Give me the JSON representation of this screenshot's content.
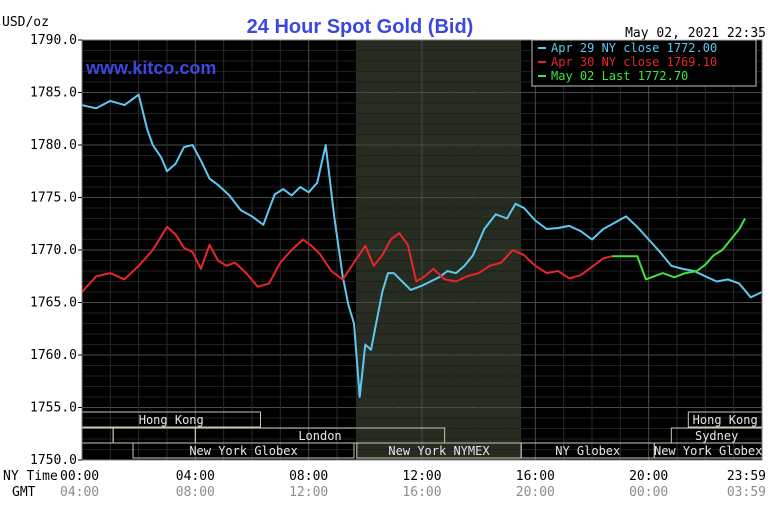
{
  "chart_data": {
    "type": "line",
    "title": "24 Hour Spot Gold (Bid)",
    "watermark": "www.kitco.com",
    "timestamp": "May 02, 2021 22:35",
    "ylabel": "USD/oz",
    "ylim": [
      1750,
      1790
    ],
    "xlim": [
      0,
      24
    ],
    "grid": true,
    "background": "#000000",
    "y_ticks": [
      "1790.0",
      "1785.0",
      "1780.0",
      "1775.0",
      "1770.0",
      "1765.0",
      "1760.0",
      "1755.0",
      "1750.0"
    ],
    "x_row_label_ny": "NY Time",
    "x_row_label_gmt": "GMT",
    "x_ticks_ny": [
      "00:00",
      "04:00",
      "08:00",
      "12:00",
      "16:00",
      "20:00",
      "23:59"
    ],
    "x_ticks_gmt": [
      "04:00",
      "08:00",
      "12:00",
      "16:00",
      "20:00",
      "00:00",
      "03:59"
    ],
    "x_tick_hours": [
      0,
      4,
      8,
      12,
      16,
      20,
      24
    ],
    "nymex_highlight": [
      9.67,
      15.5
    ],
    "legend": [
      {
        "label": "Apr 29 NY close 1772.00",
        "color": "#5ec8f0"
      },
      {
        "label": "Apr 30 NY close 1769.10",
        "color": "#e8262a"
      },
      {
        "label": "May 02 Last 1772.70",
        "color": "#3ce63c"
      }
    ],
    "sessions": [
      {
        "label": "Hong Kong",
        "row": 0,
        "start": 0,
        "end": 6.3
      },
      {
        "label": "",
        "row": 1,
        "start": 0,
        "end": 1.1
      },
      {
        "label": "",
        "row": 1,
        "start": 1.1,
        "end": 4.0
      },
      {
        "label": "London",
        "row": 1,
        "start": 4.0,
        "end": 12.8
      },
      {
        "label": "New York Globex",
        "row": 2,
        "start": 1.8,
        "end": 9.6
      },
      {
        "label": "New York NYMEX",
        "row": 2,
        "start": 9.7,
        "end": 15.5
      },
      {
        "label": "NY Globex",
        "row": 2,
        "start": 15.5,
        "end": 20.2
      },
      {
        "label": "Hong Kong",
        "row": 0,
        "start": 21.4,
        "end": 24
      },
      {
        "label": "Sydney",
        "row": 1,
        "start": 20.8,
        "end": 24
      },
      {
        "label": "New York Globex",
        "row": 2,
        "start": 20.2,
        "end": 24
      }
    ],
    "series": [
      {
        "name": "Apr 29",
        "color": "#5ec8f0",
        "x": [
          0,
          0.5,
          1,
          1.5,
          2,
          2.3,
          2.5,
          2.8,
          3,
          3.3,
          3.6,
          3.9,
          4.2,
          4.5,
          4.8,
          5.2,
          5.6,
          6,
          6.4,
          6.8,
          7.1,
          7.4,
          7.7,
          8,
          8.3,
          8.6,
          8.9,
          9.2,
          9.4,
          9.6,
          9.8,
          10,
          10.2,
          10.4,
          10.6,
          10.8,
          11,
          11.3,
          11.6,
          12,
          12.3,
          12.6,
          12.9,
          13.2,
          13.5,
          13.8,
          14.2,
          14.6,
          15,
          15.3,
          15.6,
          16,
          16.4,
          16.8,
          17.2,
          17.6,
          18,
          18.4,
          18.8,
          19.2,
          19.6,
          20,
          20.4,
          20.8,
          21.2,
          21.6,
          22,
          22.4,
          22.8,
          23.2,
          23.6,
          24
        ],
        "y": [
          1783.8,
          1783.5,
          1784.2,
          1783.8,
          1784.8,
          1781.5,
          1780.0,
          1778.8,
          1777.5,
          1778.2,
          1779.8,
          1780.0,
          1778.5,
          1776.8,
          1776.2,
          1775.2,
          1773.8,
          1773.2,
          1772.4,
          1775.3,
          1775.8,
          1775.2,
          1776.0,
          1775.5,
          1776.4,
          1780.0,
          1773.2,
          1767.5,
          1764.8,
          1763.0,
          1756.0,
          1761.0,
          1760.5,
          1763.3,
          1766.0,
          1767.8,
          1767.8,
          1767.0,
          1766.2,
          1766.6,
          1767.0,
          1767.4,
          1768.0,
          1767.8,
          1768.5,
          1769.5,
          1772.0,
          1773.4,
          1773.0,
          1774.4,
          1774.0,
          1772.8,
          1772.0,
          1772.1,
          1772.3,
          1771.8,
          1771.0,
          1772.0,
          1772.6,
          1773.2,
          1772.2,
          1771.0,
          1769.8,
          1768.5,
          1768.2,
          1768.0,
          1767.5,
          1767.0,
          1767.2,
          1766.8,
          1765.5,
          1766.0
        ]
      },
      {
        "name": "Apr 30",
        "color": "#e8262a",
        "x": [
          0,
          0.5,
          1,
          1.5,
          2,
          2.5,
          3,
          3.3,
          3.6,
          3.9,
          4.2,
          4.5,
          4.8,
          5.1,
          5.4,
          5.8,
          6.2,
          6.6,
          7,
          7.4,
          7.8,
          8.1,
          8.4,
          8.8,
          9.2,
          9.6,
          10,
          10.3,
          10.6,
          10.9,
          11.2,
          11.5,
          11.8,
          12.1,
          12.4,
          12.8,
          13.2,
          13.6,
          14,
          14.4,
          14.8,
          15.2,
          15.6,
          16,
          16.4,
          16.8,
          17.2,
          17.6,
          18,
          18.4,
          18.7
        ],
        "y": [
          1766.0,
          1767.5,
          1767.8,
          1767.2,
          1768.5,
          1770.0,
          1772.2,
          1771.5,
          1770.2,
          1769.8,
          1768.2,
          1770.5,
          1769.0,
          1768.5,
          1768.8,
          1767.8,
          1766.5,
          1766.8,
          1768.8,
          1770.0,
          1771.0,
          1770.4,
          1769.6,
          1768.0,
          1767.2,
          1768.8,
          1770.4,
          1768.5,
          1769.5,
          1771.0,
          1771.6,
          1770.5,
          1767.0,
          1767.5,
          1768.2,
          1767.2,
          1767.0,
          1767.5,
          1767.8,
          1768.5,
          1768.8,
          1770.0,
          1769.5,
          1768.5,
          1767.8,
          1768.0,
          1767.3,
          1767.6,
          1768.4,
          1769.2,
          1769.4
        ]
      },
      {
        "name": "May 02",
        "color": "#3ce63c",
        "x": [
          18.7,
          19.2,
          19.6,
          19.9,
          20.1,
          20.5,
          20.9,
          21.3,
          21.7,
          22.0,
          22.3,
          22.6,
          22.9,
          23.2,
          23.4
        ],
        "y": [
          1769.4,
          1769.4,
          1769.4,
          1767.2,
          1767.4,
          1767.8,
          1767.4,
          1767.8,
          1768.0,
          1768.6,
          1769.5,
          1770.0,
          1771.0,
          1772.0,
          1773.0
        ]
      }
    ]
  }
}
